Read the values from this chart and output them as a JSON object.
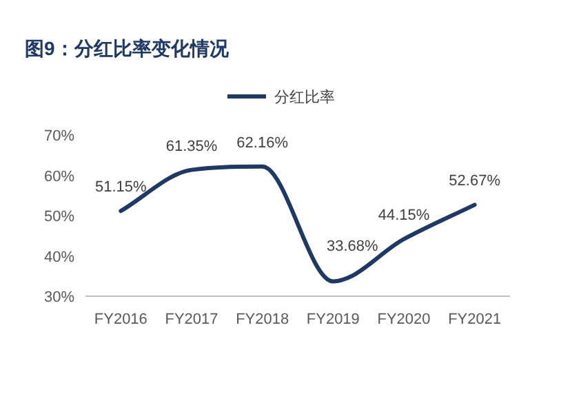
{
  "chart_data": {
    "type": "line",
    "title": "图9：分红比率变化情况",
    "categories": [
      "FY2016",
      "FY2017",
      "FY2018",
      "FY2019",
      "FY2020",
      "FY2021"
    ],
    "series": [
      {
        "name": "分红比率",
        "color": "#1f3864",
        "values": [
          51.15,
          61.35,
          62.16,
          33.68,
          44.15,
          52.67
        ],
        "value_labels": [
          "51.15%",
          "61.35%",
          "62.16%",
          "33.68%",
          "44.15%",
          "52.67%"
        ]
      }
    ],
    "ylim": [
      30,
      70
    ],
    "yticks": [
      {
        "value": 30,
        "label": "30%"
      },
      {
        "value": 40,
        "label": "40%"
      },
      {
        "value": 50,
        "label": "50%"
      },
      {
        "value": 60,
        "label": "60%"
      },
      {
        "value": 70,
        "label": "70%"
      }
    ],
    "legend": "top",
    "grid": false,
    "marker": "none",
    "line_style": "solid"
  }
}
